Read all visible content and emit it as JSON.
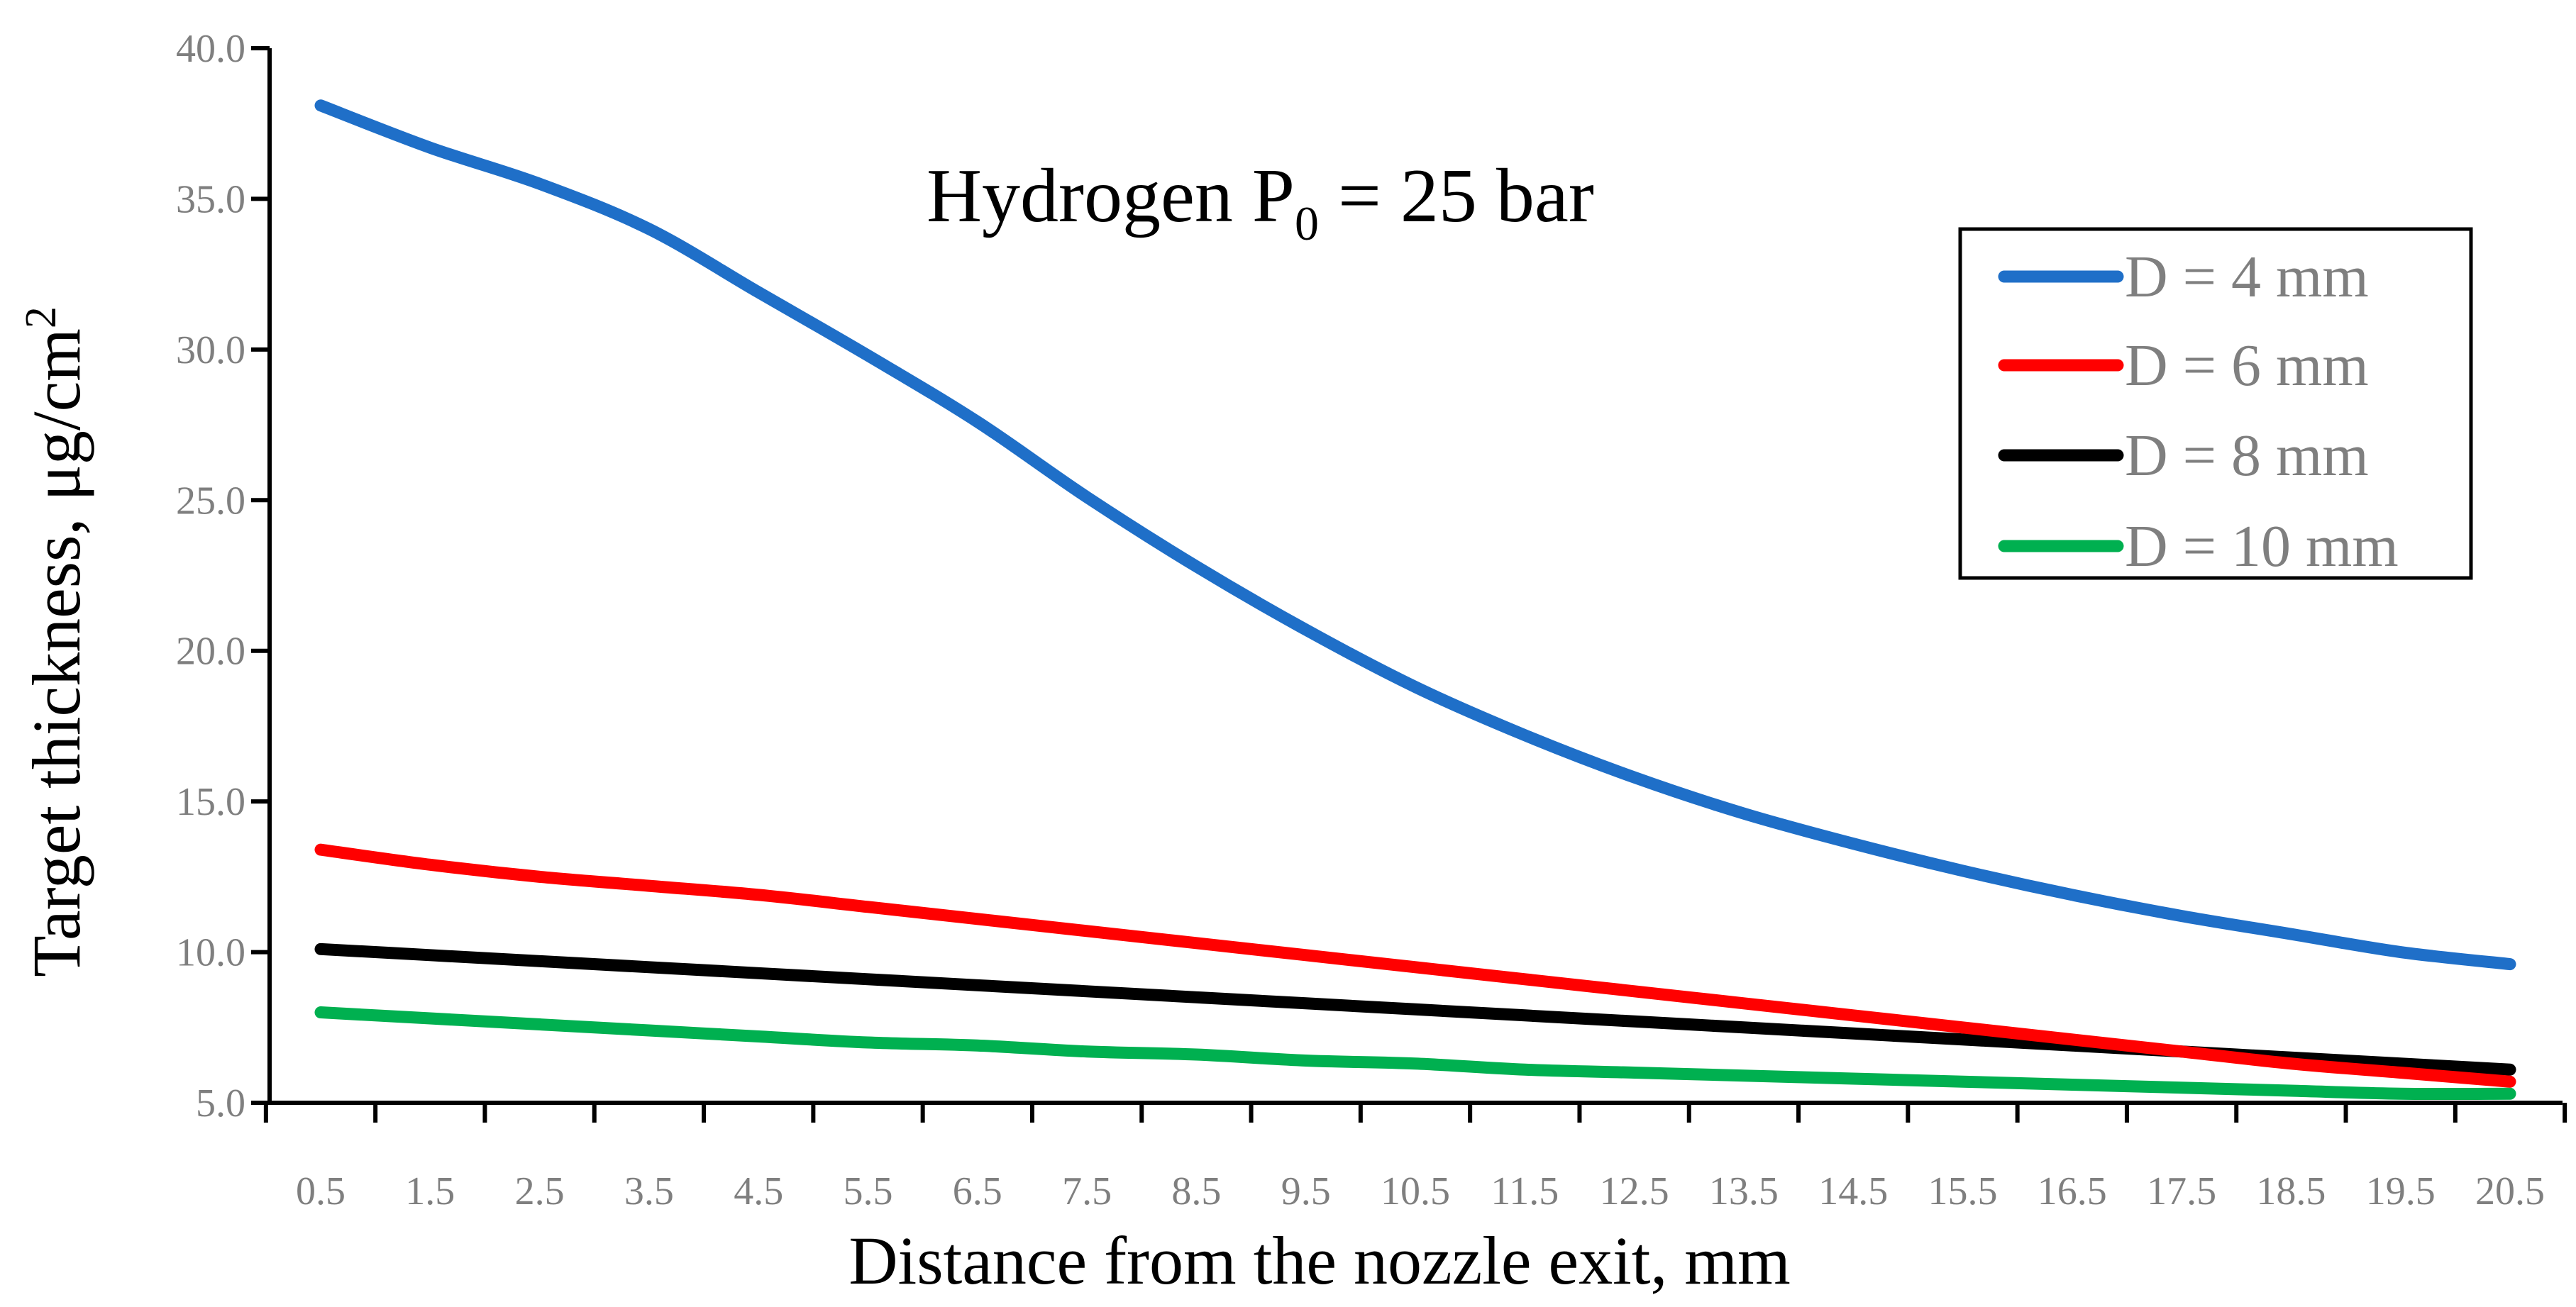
{
  "chart_data": {
    "type": "line",
    "title": "Hydrogen P",
    "title_sub": "0",
    "title_suffix": " = 25 bar",
    "xlabel": "Distance from the nozzle exit,  mm",
    "ylabel": "Target thickness, μg/cm",
    "ylabel_sup": "2",
    "categories": [
      "0.5",
      "1.5",
      "2.5",
      "3.5",
      "4.5",
      "5.5",
      "6.5",
      "7.5",
      "8.5",
      "9.5",
      "10.5",
      "11.5",
      "12.5",
      "13.5",
      "14.5",
      "15.5",
      "16.5",
      "17.5",
      "18.5",
      "19.5",
      "20.5"
    ],
    "ylim": [
      5.0,
      40.0
    ],
    "yticks": [
      "5.0",
      "10.0",
      "15.0",
      "20.0",
      "25.0",
      "30.0",
      "35.0",
      "40.0"
    ],
    "legend_position": "top-right",
    "grid": false,
    "series": [
      {
        "name": "D = 4 mm",
        "color": "#1f6fc8",
        "values": [
          38.1,
          36.7,
          35.5,
          34.0,
          31.9,
          29.8,
          27.6,
          25.1,
          22.8,
          20.7,
          18.8,
          17.2,
          15.8,
          14.6,
          13.6,
          12.7,
          11.9,
          11.2,
          10.6,
          10.0,
          9.6
        ]
      },
      {
        "name": "D = 6 mm",
        "color": "#ff0000",
        "values": [
          13.4,
          12.9,
          12.5,
          12.2,
          11.9,
          11.5,
          11.1,
          10.7,
          10.3,
          9.9,
          9.5,
          9.1,
          8.7,
          8.3,
          7.9,
          7.5,
          7.1,
          6.7,
          6.3,
          6.0,
          5.7
        ]
      },
      {
        "name": "D = 8  mm",
        "color": "#000000",
        "values": [
          10.1,
          9.9,
          9.7,
          9.5,
          9.3,
          9.1,
          8.9,
          8.7,
          8.5,
          8.3,
          8.1,
          7.9,
          7.7,
          7.5,
          7.3,
          7.1,
          6.9,
          6.7,
          6.5,
          6.3,
          6.1
        ]
      },
      {
        "name": "D = 10 mm",
        "color": "#00b050",
        "values": [
          8.0,
          7.8,
          7.6,
          7.4,
          7.2,
          7.0,
          6.9,
          6.7,
          6.6,
          6.4,
          6.3,
          6.1,
          6.0,
          5.9,
          5.8,
          5.7,
          5.6,
          5.5,
          5.4,
          5.3,
          5.3
        ]
      }
    ]
  }
}
